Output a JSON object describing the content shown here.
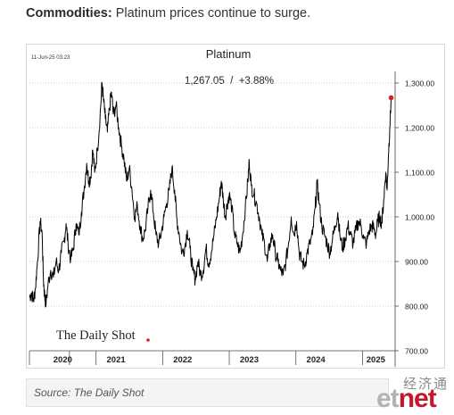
{
  "article": {
    "headline_bold": "Commodities:",
    "headline_rest": " Platinum prices continue to surge.",
    "source": "Source: The Daily Shot"
  },
  "watermark": {
    "cn": "经济通",
    "en_part1": "et",
    "en_part2": "net",
    "color_gray": "#b3b3b3",
    "color_red": "#c2182b"
  },
  "chart_data": {
    "type": "line",
    "title": "Platinum",
    "subtitle": "1,267.05  /  +3.88%",
    "date_stamp": "11-Jun-25 03:23",
    "logo": "The Daily Shot",
    "xlabel": "",
    "ylabel": "",
    "ylim": [
      700,
      1310
    ],
    "yticks": [
      700,
      800,
      900,
      1000,
      1100,
      1200,
      1300
    ],
    "ytick_labels": [
      "700.00",
      "800.00",
      "900.00",
      "1,000.00",
      "1,100.00",
      "1,200.00",
      "1,300.00"
    ],
    "xlim": [
      2020.0,
      2025.45
    ],
    "x_labels": [
      "2020",
      "2021",
      "2022",
      "2023",
      "2024",
      "2025"
    ],
    "x_label_positions": [
      2020.5,
      2021.3,
      2022.3,
      2023.3,
      2024.3,
      2025.2
    ],
    "x_year_boundaries": [
      2020.0,
      2020.6,
      2021.0,
      2022.0,
      2023.0,
      2024.0,
      2025.0
    ],
    "line_color": "#000000",
    "end_marker_color": "#d62020",
    "grid": "horizontal",
    "series": [
      {
        "values": [
          [
            2020.0,
            820
          ],
          [
            2020.03,
            830
          ],
          [
            2020.06,
            812
          ],
          [
            2020.09,
            840
          ],
          [
            2020.12,
            900
          ],
          [
            2020.16,
            990
          ],
          [
            2020.19,
            965
          ],
          [
            2020.21,
            860
          ],
          [
            2020.23,
            820
          ],
          [
            2020.25,
            805
          ],
          [
            2020.28,
            850
          ],
          [
            2020.32,
            880
          ],
          [
            2020.36,
            865
          ],
          [
            2020.4,
            900
          ],
          [
            2020.44,
            880
          ],
          [
            2020.48,
            920
          ],
          [
            2020.52,
            945
          ],
          [
            2020.55,
            985
          ],
          [
            2020.58,
            940
          ],
          [
            2020.62,
            905
          ],
          [
            2020.66,
            930
          ],
          [
            2020.7,
            985
          ],
          [
            2020.74,
            960
          ],
          [
            2020.78,
            1010
          ],
          [
            2020.82,
            1060
          ],
          [
            2020.86,
            1120
          ],
          [
            2020.89,
            1080
          ],
          [
            2020.92,
            1090
          ],
          [
            2020.95,
            1150
          ],
          [
            2020.98,
            1100
          ],
          [
            2021.02,
            1150
          ],
          [
            2021.06,
            1225
          ],
          [
            2021.09,
            1300
          ],
          [
            2021.11,
            1265
          ],
          [
            2021.14,
            1220
          ],
          [
            2021.17,
            1190
          ],
          [
            2021.2,
            1240
          ],
          [
            2021.23,
            1280
          ],
          [
            2021.26,
            1230
          ],
          [
            2021.3,
            1250
          ],
          [
            2021.34,
            1200
          ],
          [
            2021.38,
            1160
          ],
          [
            2021.42,
            1130
          ],
          [
            2021.46,
            1080
          ],
          [
            2021.5,
            1110
          ],
          [
            2021.54,
            1060
          ],
          [
            2021.58,
            1000
          ],
          [
            2021.62,
            1025
          ],
          [
            2021.66,
            980
          ],
          [
            2021.7,
            950
          ],
          [
            2021.74,
            970
          ],
          [
            2021.78,
            1020
          ],
          [
            2021.82,
            1060
          ],
          [
            2021.86,
            1010
          ],
          [
            2021.9,
            960
          ],
          [
            2021.94,
            940
          ],
          [
            2021.98,
            965
          ],
          [
            2022.02,
            1000
          ],
          [
            2022.06,
            1030
          ],
          [
            2022.1,
            1060
          ],
          [
            2022.14,
            1110
          ],
          [
            2022.18,
            1060
          ],
          [
            2022.21,
            1000
          ],
          [
            2022.25,
            960
          ],
          [
            2022.29,
            920
          ],
          [
            2022.33,
            930
          ],
          [
            2022.37,
            970
          ],
          [
            2022.41,
            930
          ],
          [
            2022.45,
            880
          ],
          [
            2022.49,
            860
          ],
          [
            2022.53,
            900
          ],
          [
            2022.57,
            870
          ],
          [
            2022.61,
            880
          ],
          [
            2022.65,
            930
          ],
          [
            2022.69,
            895
          ],
          [
            2022.73,
            920
          ],
          [
            2022.77,
            960
          ],
          [
            2022.81,
            1000
          ],
          [
            2022.85,
            1040
          ],
          [
            2022.88,
            1080
          ],
          [
            2022.91,
            1040
          ],
          [
            2022.94,
            1000
          ],
          [
            2022.97,
            1030
          ],
          [
            2023.0,
            1050
          ],
          [
            2023.04,
            1020
          ],
          [
            2023.08,
            960
          ],
          [
            2023.12,
            940
          ],
          [
            2023.16,
            920
          ],
          [
            2023.2,
            960
          ],
          [
            2023.24,
            1020
          ],
          [
            2023.28,
            1080
          ],
          [
            2023.3,
            1125
          ],
          [
            2023.33,
            1070
          ],
          [
            2023.37,
            1050
          ],
          [
            2023.41,
            1030
          ],
          [
            2023.45,
            1000
          ],
          [
            2023.49,
            960
          ],
          [
            2023.53,
            940
          ],
          [
            2023.57,
            900
          ],
          [
            2023.61,
            940
          ],
          [
            2023.65,
            960
          ],
          [
            2023.69,
            920
          ],
          [
            2023.73,
            900
          ],
          [
            2023.77,
            880
          ],
          [
            2023.81,
            870
          ],
          [
            2023.85,
            900
          ],
          [
            2023.89,
            940
          ],
          [
            2023.93,
            1000
          ],
          [
            2023.97,
            960
          ],
          [
            2024.01,
            990
          ],
          [
            2024.05,
            920
          ],
          [
            2024.09,
            900
          ],
          [
            2024.13,
            890
          ],
          [
            2024.17,
            920
          ],
          [
            2024.21,
            940
          ],
          [
            2024.25,
            960
          ],
          [
            2024.29,
            1020
          ],
          [
            2024.32,
            1075
          ],
          [
            2024.35,
            1030
          ],
          [
            2024.39,
            980
          ],
          [
            2024.43,
            960
          ],
          [
            2024.47,
            940
          ],
          [
            2024.51,
            920
          ],
          [
            2024.55,
            950
          ],
          [
            2024.59,
            980
          ],
          [
            2024.63,
            1010
          ],
          [
            2024.66,
            960
          ],
          [
            2024.7,
            930
          ],
          [
            2024.74,
            950
          ],
          [
            2024.78,
            980
          ],
          [
            2024.82,
            960
          ],
          [
            2024.86,
            940
          ],
          [
            2024.9,
            970
          ],
          [
            2024.94,
            990
          ],
          [
            2024.98,
            980
          ],
          [
            2025.02,
            950
          ],
          [
            2025.06,
            940
          ],
          [
            2025.1,
            970
          ],
          [
            2025.14,
            980
          ],
          [
            2025.17,
            975
          ],
          [
            2025.2,
            960
          ],
          [
            2025.23,
            990
          ],
          [
            2025.26,
            1000
          ],
          [
            2025.29,
            985
          ],
          [
            2025.32,
            1040
          ],
          [
            2025.35,
            1100
          ],
          [
            2025.37,
            1060
          ],
          [
            2025.39,
            1140
          ],
          [
            2025.41,
            1200
          ],
          [
            2025.43,
            1267
          ]
        ]
      }
    ]
  }
}
